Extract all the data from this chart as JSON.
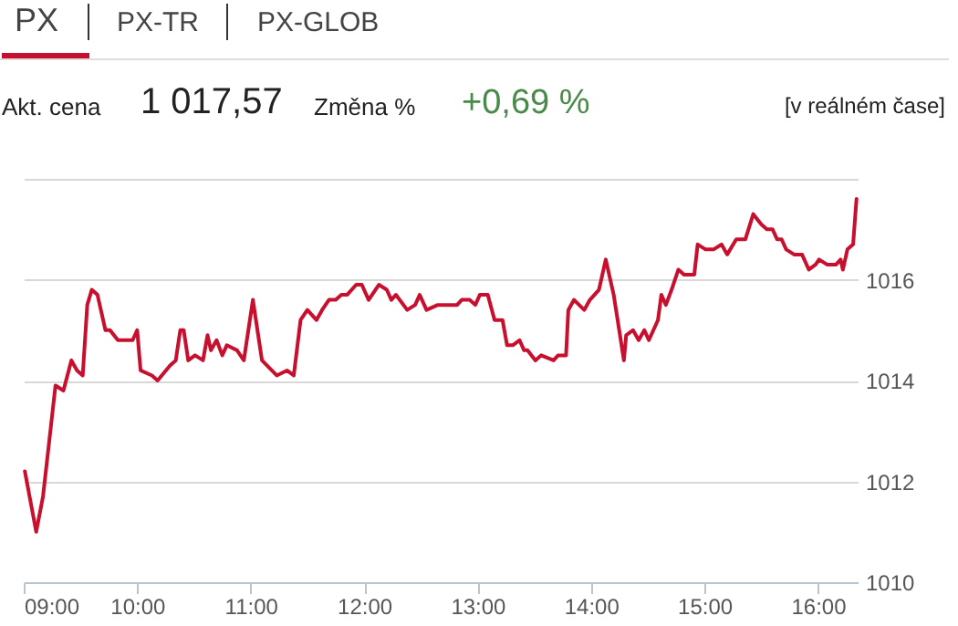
{
  "chart_data": {
    "type": "line",
    "annotations": [
      "PX",
      "PX-TR",
      "PX-GLOB",
      "Akt. cena",
      "1 017,57",
      "Změna %",
      "+0,69 %",
      "[v reálném čase]"
    ],
    "series": [
      {
        "color": "#c8102e",
        "x": [
          9.01,
          9.11,
          9.17,
          9.28,
          9.35,
          9.42,
          9.47,
          9.52,
          9.56,
          9.6,
          9.65,
          9.72,
          9.76,
          9.83,
          9.96,
          10.0,
          10.03,
          10.13,
          10.18,
          10.29,
          10.34,
          10.38,
          10.41,
          10.45,
          10.51,
          10.58,
          10.62,
          10.65,
          10.7,
          10.75,
          10.79,
          10.88,
          10.94,
          11.02,
          11.1,
          11.23,
          11.32,
          11.38,
          11.44,
          11.5,
          11.58,
          11.63,
          11.69,
          11.75,
          11.8,
          11.85,
          11.93,
          11.98,
          12.04,
          12.13,
          12.2,
          12.24,
          12.28,
          12.38,
          12.45,
          12.49,
          12.55,
          12.65,
          12.75,
          12.82,
          12.86,
          12.93,
          12.98,
          13.02,
          13.09,
          13.15,
          13.22,
          13.26,
          13.31,
          13.37,
          13.41,
          13.44,
          13.51,
          13.56,
          13.67,
          13.71,
          13.78,
          13.8,
          13.85,
          13.94,
          13.99,
          14.07,
          14.13,
          14.2,
          14.29,
          14.31,
          14.37,
          14.42,
          14.47,
          14.51,
          14.59,
          14.62,
          14.66,
          14.71,
          14.77,
          14.82,
          14.91,
          14.94,
          15.01,
          15.08,
          15.15,
          15.2,
          15.28,
          15.36,
          15.43,
          15.5,
          15.55,
          15.6,
          15.64,
          15.68,
          15.72,
          15.79,
          15.86,
          15.92,
          15.98,
          16.01,
          16.08,
          16.16,
          16.2,
          16.22,
          16.26,
          16.31,
          16.34
        ],
        "values": [
          1012.2,
          1011.0,
          1011.7,
          1013.9,
          1013.8,
          1014.4,
          1014.2,
          1014.1,
          1015.5,
          1015.8,
          1015.7,
          1015.0,
          1015.0,
          1014.8,
          1014.8,
          1015.0,
          1014.2,
          1014.1,
          1014.0,
          1014.3,
          1014.4,
          1015.0,
          1015.0,
          1014.4,
          1014.5,
          1014.4,
          1014.9,
          1014.6,
          1014.8,
          1014.5,
          1014.7,
          1014.6,
          1014.4,
          1015.6,
          1014.4,
          1014.1,
          1014.2,
          1014.1,
          1015.2,
          1015.4,
          1015.2,
          1015.4,
          1015.6,
          1015.6,
          1015.7,
          1015.7,
          1015.9,
          1015.9,
          1015.6,
          1015.9,
          1015.8,
          1015.6,
          1015.7,
          1015.4,
          1015.5,
          1015.7,
          1015.4,
          1015.5,
          1015.5,
          1015.5,
          1015.6,
          1015.6,
          1015.5,
          1015.7,
          1015.7,
          1015.2,
          1015.2,
          1014.7,
          1014.7,
          1014.8,
          1014.6,
          1014.6,
          1014.4,
          1014.5,
          1014.4,
          1014.5,
          1014.5,
          1015.4,
          1015.6,
          1015.4,
          1015.6,
          1015.8,
          1016.4,
          1015.7,
          1014.4,
          1014.9,
          1015.0,
          1014.8,
          1015.0,
          1014.8,
          1015.2,
          1015.7,
          1015.5,
          1015.8,
          1016.2,
          1016.1,
          1016.1,
          1016.7,
          1016.6,
          1016.6,
          1016.7,
          1016.5,
          1016.8,
          1016.8,
          1017.3,
          1017.1,
          1017.0,
          1017.0,
          1016.8,
          1016.8,
          1016.6,
          1016.5,
          1016.5,
          1016.2,
          1016.3,
          1016.4,
          1016.3,
          1016.3,
          1016.4,
          1016.2,
          1016.6,
          1016.7,
          1017.6
        ]
      }
    ],
    "xlim": [
      9,
      16.35
    ],
    "xticks": [
      {
        "value": 9,
        "label": "09:00"
      },
      {
        "value": 10,
        "label": "10:00"
      },
      {
        "value": 11,
        "label": "11:00"
      },
      {
        "value": 12,
        "label": "12:00"
      },
      {
        "value": 13,
        "label": "13:00"
      },
      {
        "value": 14,
        "label": "14:00"
      },
      {
        "value": 15,
        "label": "15:00"
      },
      {
        "value": 16,
        "label": "16:00"
      }
    ],
    "ylim": [
      1010,
      1018
    ],
    "yticks": [
      1010,
      1012,
      1014,
      1016,
      {
        "value": 1018,
        "label": null
      }
    ],
    "grid": "y",
    "marker": "none",
    "line_style": "solid"
  }
}
